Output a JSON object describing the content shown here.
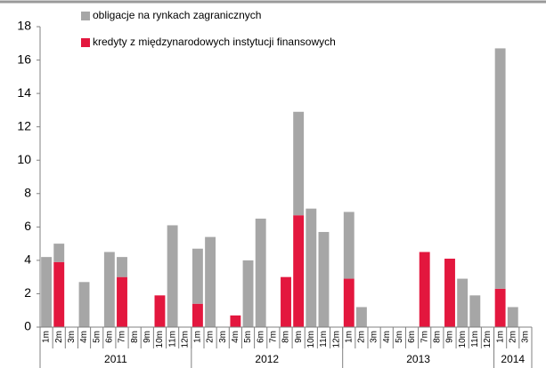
{
  "chart_data": {
    "type": "stacked_bar",
    "categories": [
      "1m",
      "2m",
      "3m",
      "4m",
      "5m",
      "6m",
      "7m",
      "8m",
      "9m",
      "10m",
      "11m",
      "12m",
      "1m",
      "2m",
      "3m",
      "4m",
      "5m",
      "6m",
      "7m",
      "8m",
      "9m",
      "10m",
      "11m",
      "12m",
      "1m",
      "2m",
      "3m",
      "4m",
      "5m",
      "6m",
      "7m",
      "8m",
      "9m",
      "10m",
      "11m",
      "12m",
      "1m",
      "2m",
      "3m"
    ],
    "groups": [
      {
        "label": "2011",
        "count": 12
      },
      {
        "label": "2012",
        "count": 12
      },
      {
        "label": "2013",
        "count": 12
      },
      {
        "label": "2014",
        "count": 3
      }
    ],
    "series": [
      {
        "name": "kredyty z międzynarodowych instytucji finansowych",
        "color": "#e3173e",
        "values": [
          0,
          3.9,
          0,
          0,
          0,
          0,
          3.0,
          0,
          0,
          1.9,
          0,
          0,
          1.4,
          0,
          0,
          0.7,
          0,
          0,
          0,
          3.0,
          6.7,
          0,
          0,
          0,
          2.9,
          0,
          0,
          0,
          0,
          0,
          4.5,
          0,
          4.1,
          0,
          0,
          0,
          2.3,
          0,
          0
        ]
      },
      {
        "name": "obligacje na rynkach zagranicznych",
        "color": "#a6a6a6",
        "values": [
          4.2,
          1.1,
          0,
          2.7,
          0,
          4.5,
          1.2,
          0,
          0,
          0,
          6.1,
          0,
          3.3,
          5.4,
          0,
          0,
          4.0,
          6.5,
          0,
          0,
          6.2,
          7.1,
          5.7,
          0,
          4.0,
          1.2,
          0,
          0,
          0,
          0,
          0,
          0,
          0,
          2.9,
          1.9,
          0,
          14.4,
          1.2,
          0
        ]
      }
    ],
    "ylim": [
      0,
      18
    ],
    "yticks": [
      0,
      2,
      4,
      6,
      8,
      10,
      12,
      14,
      16,
      18
    ]
  }
}
